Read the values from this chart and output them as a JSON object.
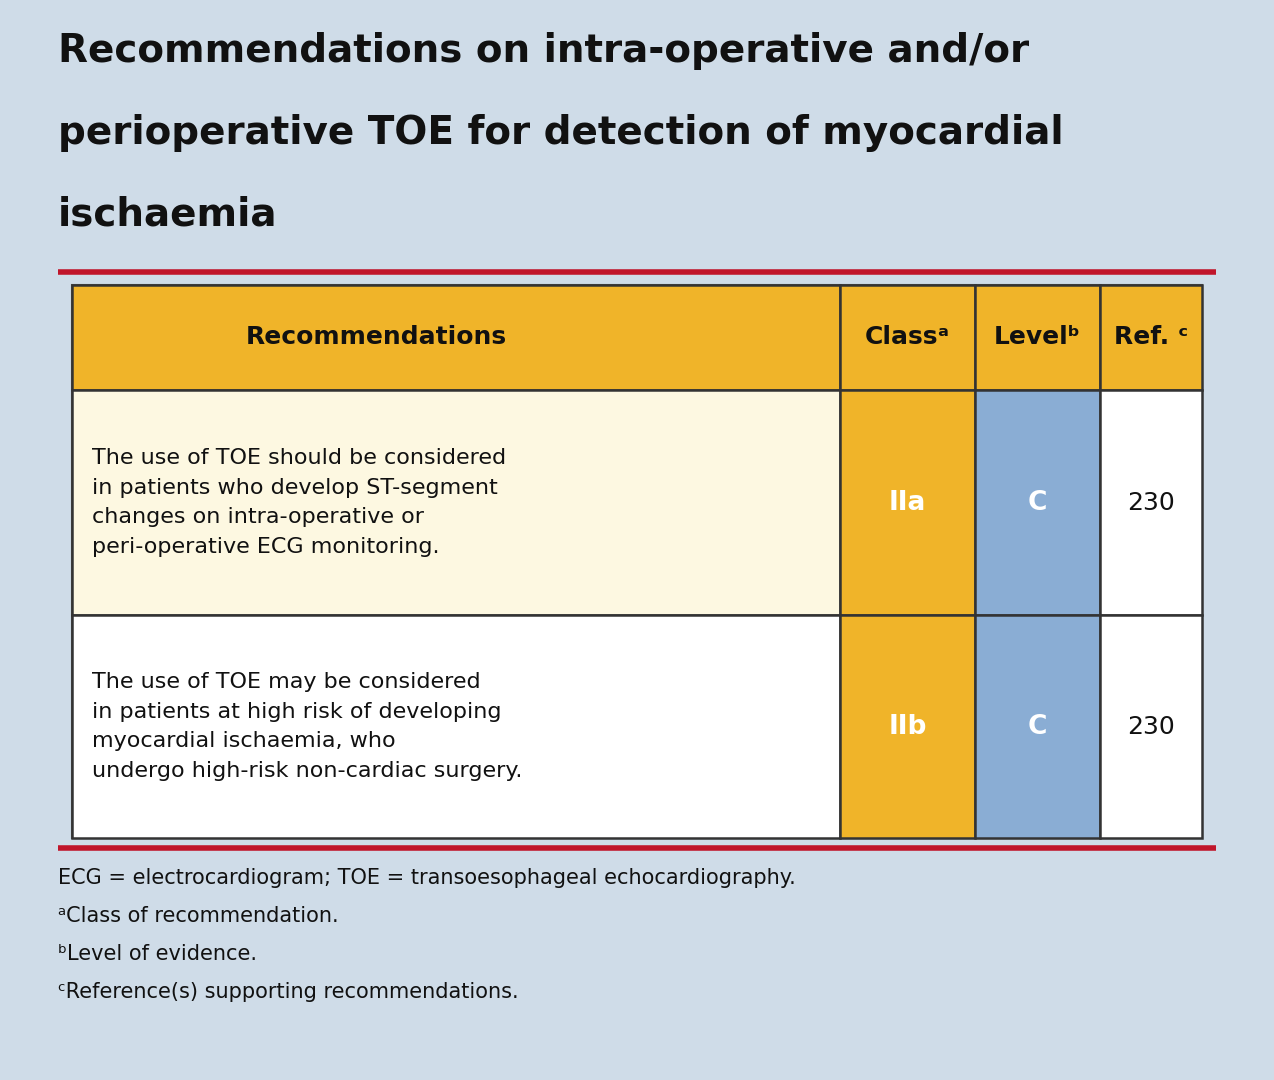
{
  "title_line1": "Recommendations on intra-operative and/or",
  "title_line2": "perioperative TOE for detection of myocardial",
  "title_line3": "ischaemia",
  "background_color": "#cfdce8",
  "title_color": "#111111",
  "title_fontsize": 28,
  "red_line_color": "#c0152a",
  "table_border_color": "#333333",
  "table_outer_border": "#888888",
  "header_bg": "#f0b429",
  "header_text_color": "#111111",
  "header_fontsize": 18,
  "row1_rec_bg": "#fdf8e1",
  "row2_rec_bg": "#ffffff",
  "class_bg": "#f0b429",
  "level_bg": "#8aadd4",
  "ref_bg": "#ffffff",
  "class_text_color": "#ffffff",
  "level_text_color": "#ffffff",
  "ref_text_color": "#111111",
  "rec_text_color": "#111111",
  "cell_fontsize": 16,
  "header_labels": [
    "Recommendations",
    "Classᵃ",
    "Levelᵇ",
    "Ref. ᶜ"
  ],
  "row1_rec": "The use of TOE should be considered\nin patients who develop ST-segment\nchanges on intra-operative or\nperi-operative ECG monitoring.",
  "row1_class": "IIa",
  "row1_level": "C",
  "row1_ref": "230",
  "row2_rec": "The use of TOE may be considered\nin patients at high risk of developing\nmyocardial ischaemia, who\nundergo high-risk non-cardiac surgery.",
  "row2_class": "IIb",
  "row2_level": "C",
  "row2_ref": "230",
  "footnotes": [
    "ECG = electrocardiogram; TOE = transoesophageal echocardiography.",
    "ᵃClass of recommendation.",
    "ᵇLevel of evidence.",
    "ᶜReference(s) supporting recommendations."
  ],
  "footnote_fontsize": 15
}
